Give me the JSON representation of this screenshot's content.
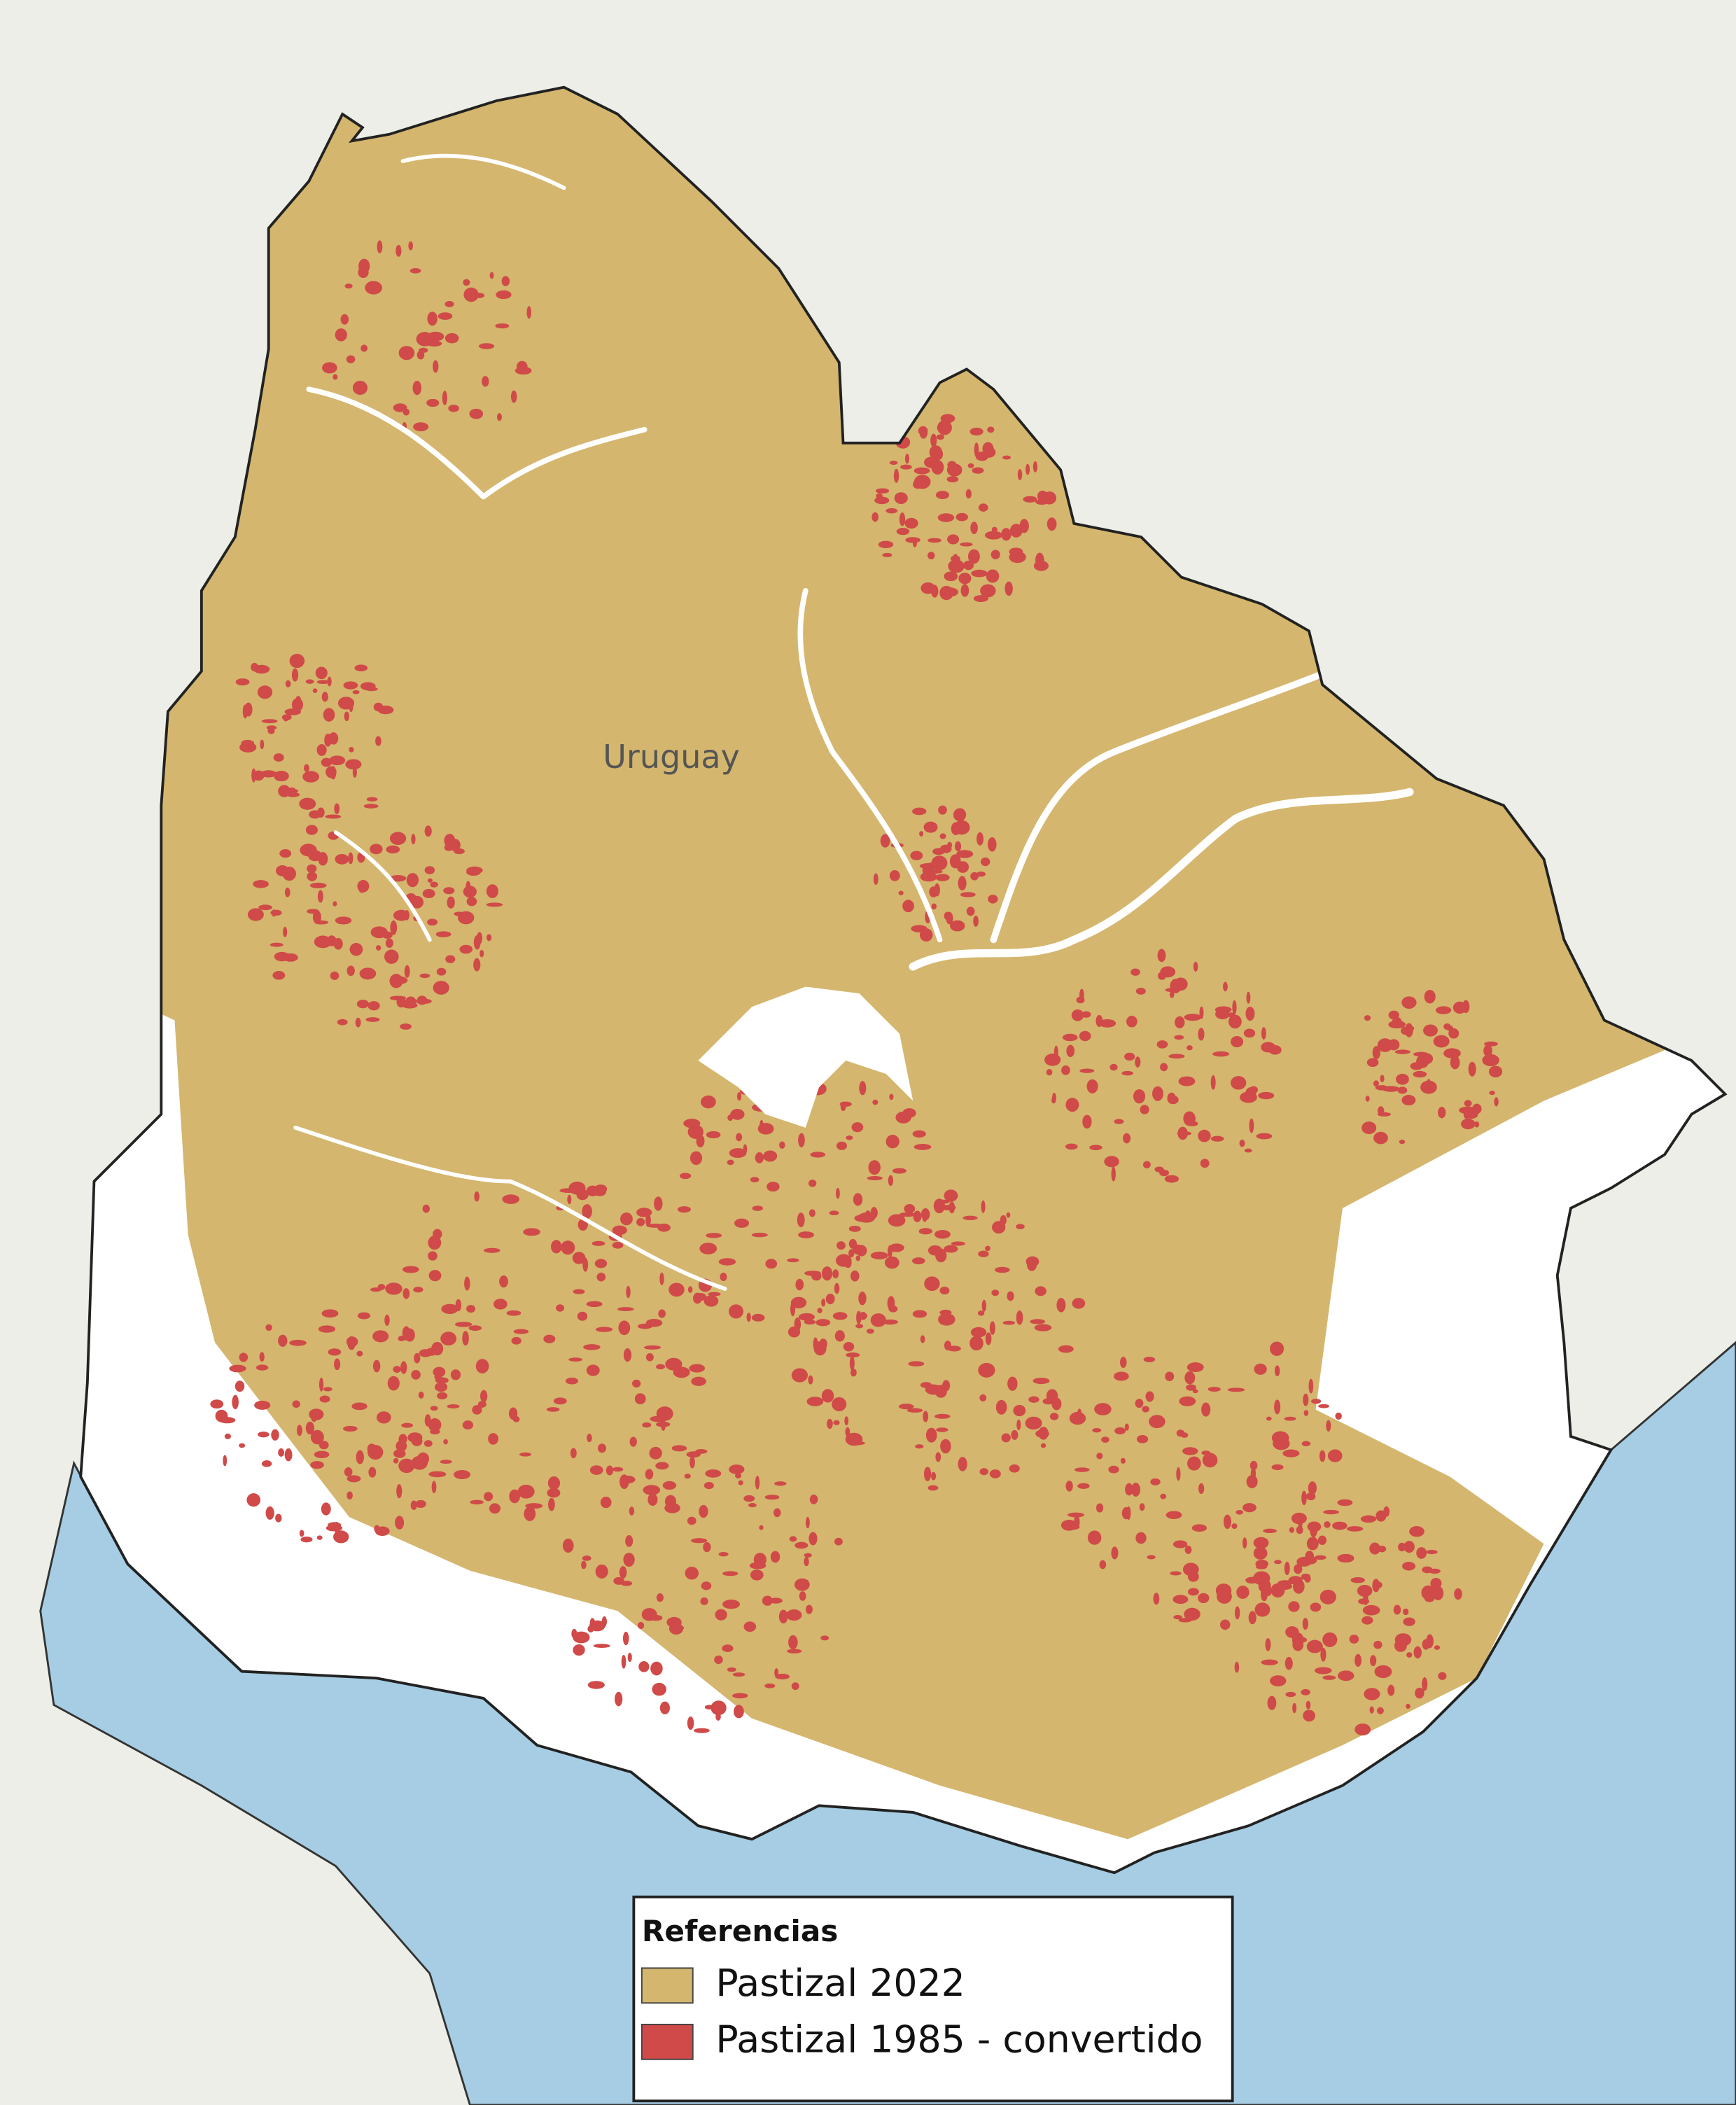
{
  "map": {
    "label": "Uruguay"
  },
  "legend": {
    "title": "Referencias",
    "items": [
      {
        "label": "Pastizal 2022",
        "color": "#d4b66e"
      },
      {
        "label": "Pastizal 1985 - convertido",
        "color": "#cf4a48"
      }
    ]
  }
}
